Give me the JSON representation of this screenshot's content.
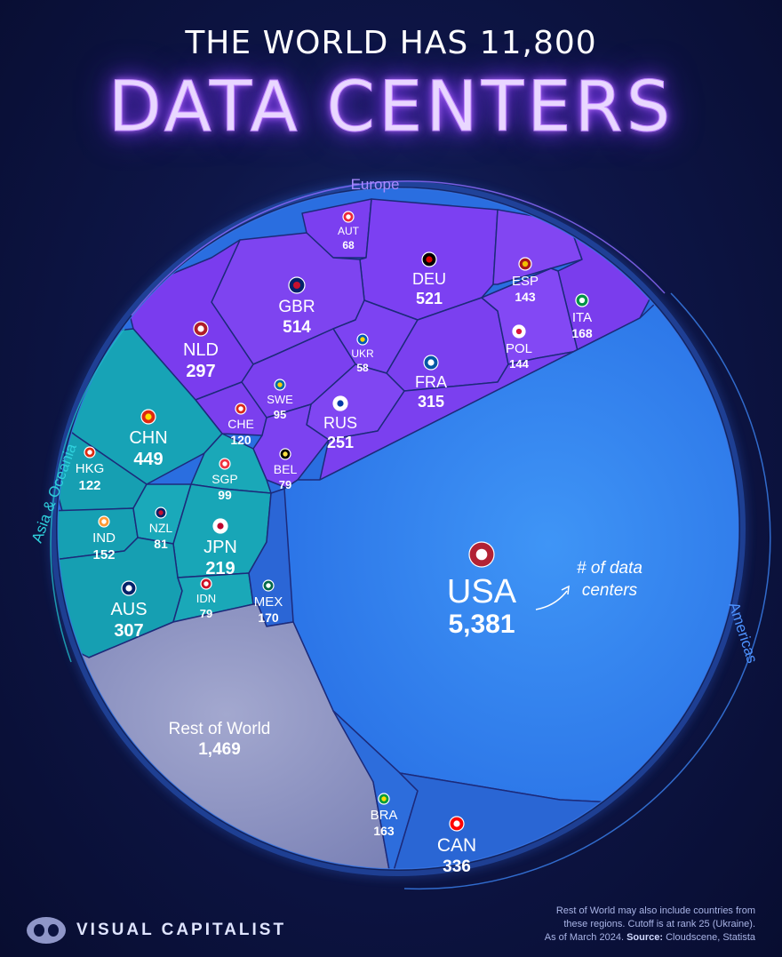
{
  "header": {
    "title_line1": "THE WORLD HAS 11,800",
    "title_line2": "DATA CENTERS"
  },
  "regions": {
    "europe": "Europe",
    "asia_oceania": "Asia & Oceania",
    "americas": "Americas"
  },
  "annotation": {
    "line1": "# of data",
    "line2": "centers"
  },
  "footer": {
    "brand": "VISUAL CAPITALIST",
    "note_line1": "Rest of World may also include countries from",
    "note_line2": "these regions. Cutoff is at rank 25 (Ukraine).",
    "note_line3_prefix": "As of March 2024.",
    "note_source_label": "Source:",
    "note_source": "Cloudscene, Statista"
  },
  "colors": {
    "europe": "#7b3ff0",
    "asia_oceania": "#19a9b8",
    "americas": "#2f6fe0",
    "usa": "#3b8cf2",
    "rest_of_world": "#8c93c0"
  },
  "chart_data": {
    "type": "voronoi-treemap",
    "title": "THE WORLD HAS 11,800 DATA CENTERS",
    "total": 11800,
    "cells": [
      {
        "code": "USA",
        "value": 5381,
        "value_label": "5,381",
        "region": "Americas"
      },
      {
        "code": "DEU",
        "value": 521,
        "value_label": "521",
        "region": "Europe"
      },
      {
        "code": "GBR",
        "value": 514,
        "value_label": "514",
        "region": "Europe"
      },
      {
        "code": "CHN",
        "value": 449,
        "value_label": "449",
        "region": "Asia & Oceania"
      },
      {
        "code": "CAN",
        "value": 336,
        "value_label": "336",
        "region": "Americas"
      },
      {
        "code": "FRA",
        "value": 315,
        "value_label": "315",
        "region": "Europe"
      },
      {
        "code": "AUS",
        "value": 307,
        "value_label": "307",
        "region": "Asia & Oceania"
      },
      {
        "code": "NLD",
        "value": 297,
        "value_label": "297",
        "region": "Europe"
      },
      {
        "code": "RUS",
        "value": 251,
        "value_label": "251",
        "region": "Europe"
      },
      {
        "code": "JPN",
        "value": 219,
        "value_label": "219",
        "region": "Asia & Oceania"
      },
      {
        "code": "MEX",
        "value": 170,
        "value_label": "170",
        "region": "Americas"
      },
      {
        "code": "ITA",
        "value": 168,
        "value_label": "168",
        "region": "Europe"
      },
      {
        "code": "BRA",
        "value": 163,
        "value_label": "163",
        "region": "Americas"
      },
      {
        "code": "IND",
        "value": 152,
        "value_label": "152",
        "region": "Asia & Oceania"
      },
      {
        "code": "POL",
        "value": 144,
        "value_label": "144",
        "region": "Europe"
      },
      {
        "code": "ESP",
        "value": 143,
        "value_label": "143",
        "region": "Europe"
      },
      {
        "code": "HKG",
        "value": 122,
        "value_label": "122",
        "region": "Asia & Oceania"
      },
      {
        "code": "CHE",
        "value": 120,
        "value_label": "120",
        "region": "Europe"
      },
      {
        "code": "SGP",
        "value": 99,
        "value_label": "99",
        "region": "Asia & Oceania"
      },
      {
        "code": "SWE",
        "value": 95,
        "value_label": "95",
        "region": "Europe"
      },
      {
        "code": "NZL",
        "value": 81,
        "value_label": "81",
        "region": "Asia & Oceania"
      },
      {
        "code": "IDN",
        "value": 79,
        "value_label": "79",
        "region": "Asia & Oceania"
      },
      {
        "code": "BEL",
        "value": 79,
        "value_label": "79",
        "region": "Europe"
      },
      {
        "code": "AUT",
        "value": 68,
        "value_label": "68",
        "region": "Europe"
      },
      {
        "code": "UKR",
        "value": 58,
        "value_label": "58",
        "region": "Europe"
      },
      {
        "code": "Rest of World",
        "value": 1469,
        "value_label": "1,469",
        "region": "Rest of World"
      }
    ]
  }
}
